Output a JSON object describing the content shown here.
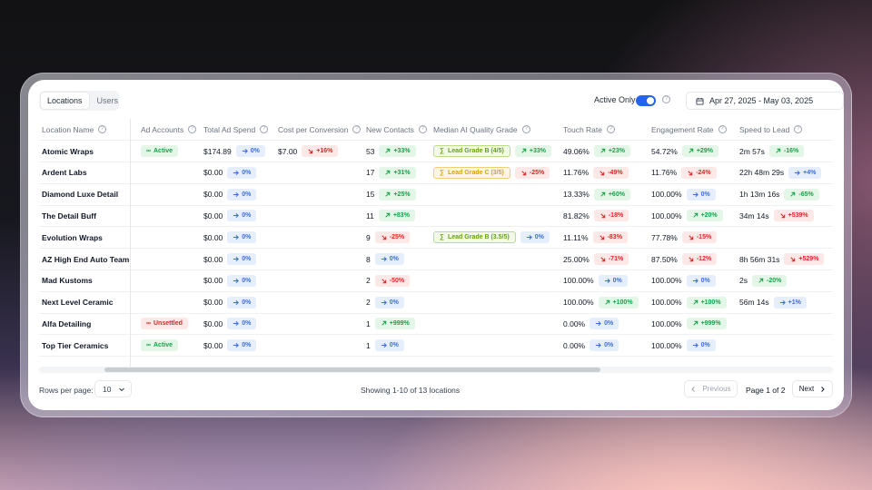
{
  "tabs": [
    {
      "label": "Locations",
      "active": true
    },
    {
      "label": "Users",
      "active": false
    }
  ],
  "active_only_label": "Active Only",
  "active_only_on": true,
  "date_range": "Apr 27, 2025 - May 03, 2025",
  "columns": [
    "Location Name",
    "Ad Accounts",
    "Total Ad Spend",
    "Cost per Conversion",
    "New Contacts",
    "Median AI Quality Grade",
    "Touch Rate",
    "Engagement Rate",
    "Speed to Lead"
  ],
  "rows": [
    {
      "name": "Atomic Wraps",
      "ad": {
        "label": "Active",
        "kind": "active"
      },
      "spend": "$174.89",
      "spend_d": {
        "t": "0%",
        "k": "flat"
      },
      "cpc": "$7.00",
      "cpc_d": {
        "t": "+16%",
        "k": "down"
      },
      "contacts": "53",
      "contacts_d": {
        "t": "+33%",
        "k": "up"
      },
      "grade": {
        "label": "Lead Grade B (4/5)",
        "kind": "b"
      },
      "grade_d": {
        "t": "+33%",
        "k": "up"
      },
      "touch": "49.06%",
      "touch_d": {
        "t": "+23%",
        "k": "up"
      },
      "eng": "54.72%",
      "eng_d": {
        "t": "+29%",
        "k": "up"
      },
      "speed": "2m 57s",
      "speed_d": {
        "t": "-16%",
        "k": "up"
      }
    },
    {
      "name": "Ardent Labs",
      "ad": null,
      "spend": "$0.00",
      "spend_d": {
        "t": "0%",
        "k": "flat"
      },
      "cpc": "",
      "cpc_d": null,
      "contacts": "17",
      "contacts_d": {
        "t": "+31%",
        "k": "up"
      },
      "grade": {
        "label": "Lead Grade C (3/5)",
        "kind": "c"
      },
      "grade_d": {
        "t": "-25%",
        "k": "down"
      },
      "touch": "11.76%",
      "touch_d": {
        "t": "-49%",
        "k": "down"
      },
      "eng": "11.76%",
      "eng_d": {
        "t": "-24%",
        "k": "down"
      },
      "speed": "22h 48m 29s",
      "speed_d": {
        "t": "+4%",
        "k": "flat"
      }
    },
    {
      "name": "Diamond Luxe Detail",
      "ad": null,
      "spend": "$0.00",
      "spend_d": {
        "t": "0%",
        "k": "flat"
      },
      "cpc": "",
      "cpc_d": null,
      "contacts": "15",
      "contacts_d": {
        "t": "+25%",
        "k": "up"
      },
      "grade": null,
      "grade_d": null,
      "touch": "13.33%",
      "touch_d": {
        "t": "+60%",
        "k": "up"
      },
      "eng": "100.00%",
      "eng_d": {
        "t": "0%",
        "k": "flat"
      },
      "speed": "1h 13m 16s",
      "speed_d": {
        "t": "-65%",
        "k": "up"
      }
    },
    {
      "name": "The Detail Buff",
      "ad": null,
      "spend": "$0.00",
      "spend_d": {
        "t": "0%",
        "k": "flat"
      },
      "cpc": "",
      "cpc_d": null,
      "contacts": "11",
      "contacts_d": {
        "t": "+83%",
        "k": "up"
      },
      "grade": null,
      "grade_d": null,
      "touch": "81.82%",
      "touch_d": {
        "t": "-18%",
        "k": "down"
      },
      "eng": "100.00%",
      "eng_d": {
        "t": "+20%",
        "k": "up"
      },
      "speed": "34m 14s",
      "speed_d": {
        "t": "+539%",
        "k": "down"
      }
    },
    {
      "name": "Evolution Wraps",
      "ad": null,
      "spend": "$0.00",
      "spend_d": {
        "t": "0%",
        "k": "flat"
      },
      "cpc": "",
      "cpc_d": null,
      "contacts": "9",
      "contacts_d": {
        "t": "-25%",
        "k": "down"
      },
      "grade": {
        "label": "Lead Grade B (3.5/5)",
        "kind": "b"
      },
      "grade_d": {
        "t": "0%",
        "k": "flat"
      },
      "touch": "11.11%",
      "touch_d": {
        "t": "-83%",
        "k": "down"
      },
      "eng": "77.78%",
      "eng_d": {
        "t": "-15%",
        "k": "down"
      },
      "speed": "",
      "speed_d": null
    },
    {
      "name": "AZ High End Auto Team",
      "ad": null,
      "spend": "$0.00",
      "spend_d": {
        "t": "0%",
        "k": "flat"
      },
      "cpc": "",
      "cpc_d": null,
      "contacts": "8",
      "contacts_d": {
        "t": "0%",
        "k": "flat"
      },
      "grade": null,
      "grade_d": null,
      "touch": "25.00%",
      "touch_d": {
        "t": "-71%",
        "k": "down"
      },
      "eng": "87.50%",
      "eng_d": {
        "t": "-12%",
        "k": "down"
      },
      "speed": "8h 56m 31s",
      "speed_d": {
        "t": "+529%",
        "k": "down"
      }
    },
    {
      "name": "Mad Kustoms",
      "ad": null,
      "spend": "$0.00",
      "spend_d": {
        "t": "0%",
        "k": "flat"
      },
      "cpc": "",
      "cpc_d": null,
      "contacts": "2",
      "contacts_d": {
        "t": "-50%",
        "k": "down"
      },
      "grade": null,
      "grade_d": null,
      "touch": "100.00%",
      "touch_d": {
        "t": "0%",
        "k": "flat"
      },
      "eng": "100.00%",
      "eng_d": {
        "t": "0%",
        "k": "flat"
      },
      "speed": "2s",
      "speed_d": {
        "t": "-20%",
        "k": "up"
      }
    },
    {
      "name": "Next Level Ceramic",
      "ad": null,
      "spend": "$0.00",
      "spend_d": {
        "t": "0%",
        "k": "flat"
      },
      "cpc": "",
      "cpc_d": null,
      "contacts": "2",
      "contacts_d": {
        "t": "0%",
        "k": "flat"
      },
      "grade": null,
      "grade_d": null,
      "touch": "100.00%",
      "touch_d": {
        "t": "+100%",
        "k": "up"
      },
      "eng": "100.00%",
      "eng_d": {
        "t": "+100%",
        "k": "up"
      },
      "speed": "56m 14s",
      "speed_d": {
        "t": "+1%",
        "k": "flat"
      }
    },
    {
      "name": "Alfa Detailing",
      "ad": {
        "label": "Unsettled",
        "kind": "unsettled"
      },
      "spend": "$0.00",
      "spend_d": {
        "t": "0%",
        "k": "flat"
      },
      "cpc": "",
      "cpc_d": null,
      "contacts": "1",
      "contacts_d": {
        "t": "+999%",
        "k": "up"
      },
      "grade": null,
      "grade_d": null,
      "touch": "0.00%",
      "touch_d": {
        "t": "0%",
        "k": "flat"
      },
      "eng": "100.00%",
      "eng_d": {
        "t": "+999%",
        "k": "up"
      },
      "speed": "",
      "speed_d": null
    },
    {
      "name": "Top Tier Ceramics",
      "ad": {
        "label": "Active",
        "kind": "active"
      },
      "spend": "$0.00",
      "spend_d": {
        "t": "0%",
        "k": "flat"
      },
      "cpc": "",
      "cpc_d": null,
      "contacts": "1",
      "contacts_d": {
        "t": "0%",
        "k": "flat"
      },
      "grade": null,
      "grade_d": null,
      "touch": "0.00%",
      "touch_d": {
        "t": "0%",
        "k": "flat"
      },
      "eng": "100.00%",
      "eng_d": {
        "t": "0%",
        "k": "flat"
      },
      "speed": "",
      "speed_d": null
    }
  ],
  "footer": {
    "rows_per_page_label": "Rows per page:",
    "rows_per_page_value": "10",
    "showing": "Showing 1-10 of 13 locations",
    "prev_label": "Previous",
    "page_info": "Page 1 of 2",
    "next_label": "Next"
  },
  "colors": {
    "accent": "#2563eb",
    "up": "#16a34a",
    "down": "#dc2626",
    "flat": "#3b6fd8"
  },
  "icons": [
    "help-icon",
    "calendar-icon",
    "link-icon",
    "arrow-icon",
    "sigma-icon",
    "chevron-down-icon",
    "chevron-left-icon",
    "chevron-right-icon"
  ]
}
